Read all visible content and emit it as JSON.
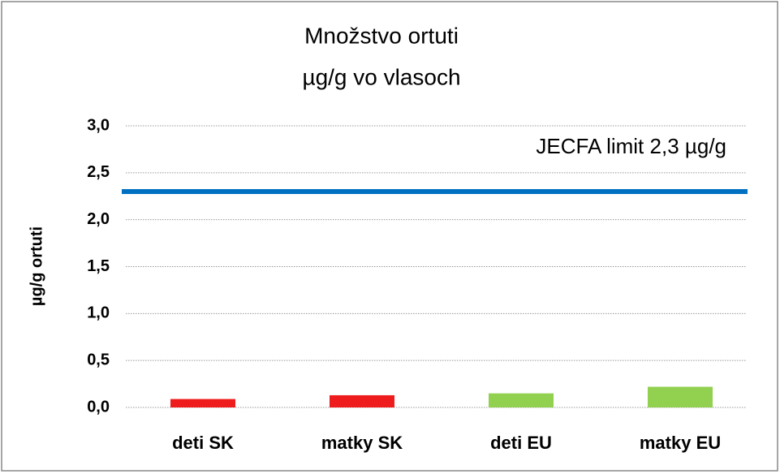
{
  "chart_data": {
    "type": "bar",
    "title": [
      "Množstvo ortuti",
      "µg/g vo vlasoch"
    ],
    "y_label": "µg/g ortuti",
    "categories": [
      "deti SK",
      "matky SK",
      "deti EU",
      "matky EU"
    ],
    "values": [
      0.09,
      0.13,
      0.15,
      0.22
    ],
    "colors": [
      "#ee1c1c",
      "#ee1c1c",
      "#92d050",
      "#92d050"
    ],
    "ylim": [
      0,
      3
    ],
    "yticks": [
      {
        "value": 0,
        "label": "0,0"
      },
      {
        "value": 0.5,
        "label": "0,5"
      },
      {
        "value": 1,
        "label": "1,0"
      },
      {
        "value": 1.5,
        "label": "1,5"
      },
      {
        "value": 2,
        "label": "2,0"
      },
      {
        "value": 2.5,
        "label": "2,5"
      },
      {
        "value": 3,
        "label": "3,0"
      }
    ],
    "grid": true,
    "reference_line": {
      "value": 2.3,
      "label": "JECFA limit 2,3 µg/g",
      "color": "#0070c0"
    }
  }
}
